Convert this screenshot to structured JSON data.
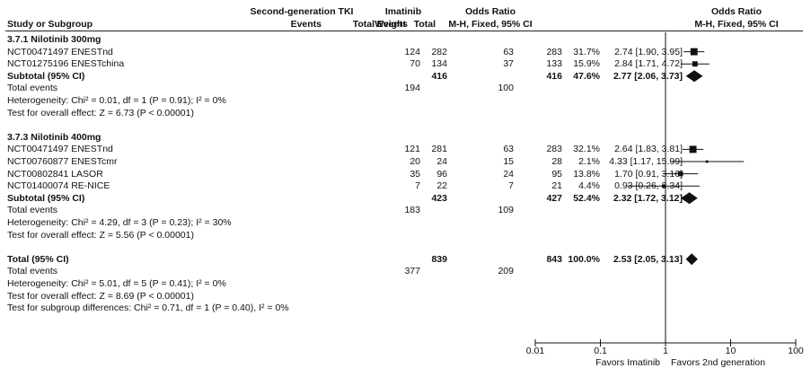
{
  "header": {
    "group1": "Imatinib",
    "group2": "Second-generation TKI",
    "col_study": "Study or Subgroup",
    "col_events": "Events",
    "col_total": "Total",
    "col_weight": "Weight",
    "or_title": "Odds Ratio",
    "or_method": "M-H, Fixed, 95% CI",
    "plot_title": "Odds Ratio",
    "plot_method": "M-H, Fixed, 95% CI"
  },
  "subgroups": [
    {
      "title": "3.7.1 Nilotinib 300mg",
      "studies": [
        {
          "name": "NCT00471497 ENESTnd",
          "e1": "124",
          "n1": "282",
          "e2": "63",
          "n2": "283",
          "weight": "31.7%",
          "ci_text": "2.74 [1.90, 3.95]",
          "or": 2.74,
          "lo": 1.9,
          "hi": 3.95,
          "w": 31.7
        },
        {
          "name": "NCT01275196 ENESTchina",
          "e1": "70",
          "n1": "134",
          "e2": "37",
          "n2": "133",
          "weight": "15.9%",
          "ci_text": "2.84 [1.71, 4.72]",
          "or": 2.84,
          "lo": 1.71,
          "hi": 4.72,
          "w": 15.9
        }
      ],
      "subtotal": {
        "label": "Subtotal (95% CI)",
        "n1": "416",
        "n2": "416",
        "weight": "47.6%",
        "ci_text": "2.77 [2.06, 3.73]",
        "or": 2.77,
        "lo": 2.06,
        "hi": 3.73
      },
      "total_events": {
        "label": "Total events",
        "e1": "194",
        "e2": "100"
      },
      "heterogeneity": "Heterogeneity: Chi² = 0.01, df = 1 (P = 0.91); I² = 0%",
      "overall": "Test for overall effect: Z = 6.73 (P < 0.00001)"
    },
    {
      "title": "3.7.3 Nilotinib 400mg",
      "studies": [
        {
          "name": "NCT00471497 ENESTnd",
          "e1": "121",
          "n1": "281",
          "e2": "63",
          "n2": "283",
          "weight": "32.1%",
          "ci_text": "2.64 [1.83, 3.81]",
          "or": 2.64,
          "lo": 1.83,
          "hi": 3.81,
          "w": 32.1
        },
        {
          "name": "NCT00760877 ENESTcmr",
          "e1": "20",
          "n1": "24",
          "e2": "15",
          "n2": "28",
          "weight": "2.1%",
          "ci_text": "4.33 [1.17, 15.99]",
          "or": 4.33,
          "lo": 1.17,
          "hi": 15.99,
          "w": 2.1
        },
        {
          "name": "NCT00802841 LASOR",
          "e1": "35",
          "n1": "96",
          "e2": "24",
          "n2": "95",
          "weight": "13.8%",
          "ci_text": "1.70 [0.91, 3.16]",
          "or": 1.7,
          "lo": 0.91,
          "hi": 3.16,
          "w": 13.8
        },
        {
          "name": "NCT01400074 RE-NICE",
          "e1": "7",
          "n1": "22",
          "e2": "7",
          "n2": "21",
          "weight": "4.4%",
          "ci_text": "0.93 [0.26, 3.34]",
          "or": 0.93,
          "lo": 0.26,
          "hi": 3.34,
          "w": 4.4
        }
      ],
      "subtotal": {
        "label": "Subtotal (95% CI)",
        "n1": "423",
        "n2": "427",
        "weight": "52.4%",
        "ci_text": "2.32 [1.72, 3.12]",
        "or": 2.32,
        "lo": 1.72,
        "hi": 3.12
      },
      "total_events": {
        "label": "Total events",
        "e1": "183",
        "e2": "109"
      },
      "heterogeneity": "Heterogeneity: Chi² = 4.29, df = 3 (P = 0.23); I² = 30%",
      "overall": "Test for overall effect: Z = 5.56 (P < 0.00001)"
    }
  ],
  "total": {
    "label": "Total (95% CI)",
    "n1": "839",
    "n2": "843",
    "weight": "100.0%",
    "ci_text": "2.53 [2.05, 3.13]",
    "or": 2.53,
    "lo": 2.05,
    "hi": 3.13,
    "events_label": "Total events",
    "e1": "377",
    "e2": "209",
    "heterogeneity": "Heterogeneity: Chi² = 5.01, df = 5 (P = 0.41); I² = 0%",
    "overall": "Test for overall effect: Z = 8.69 (P < 0.00001)",
    "subgroup_diff": "Test for subgroup differences: Chi² = 0.71, df = 1 (P = 0.40), I² = 0%"
  },
  "chart_data": {
    "type": "forest",
    "scale": "log",
    "xlim": [
      0.01,
      100
    ],
    "ticks": [
      0.01,
      0.1,
      1,
      10,
      100
    ],
    "tick_labels": [
      "0.01",
      "0.1",
      "1",
      "10",
      "100"
    ],
    "favors_left": "Favors Imatinib",
    "favors_right": "Favors 2nd generation"
  }
}
